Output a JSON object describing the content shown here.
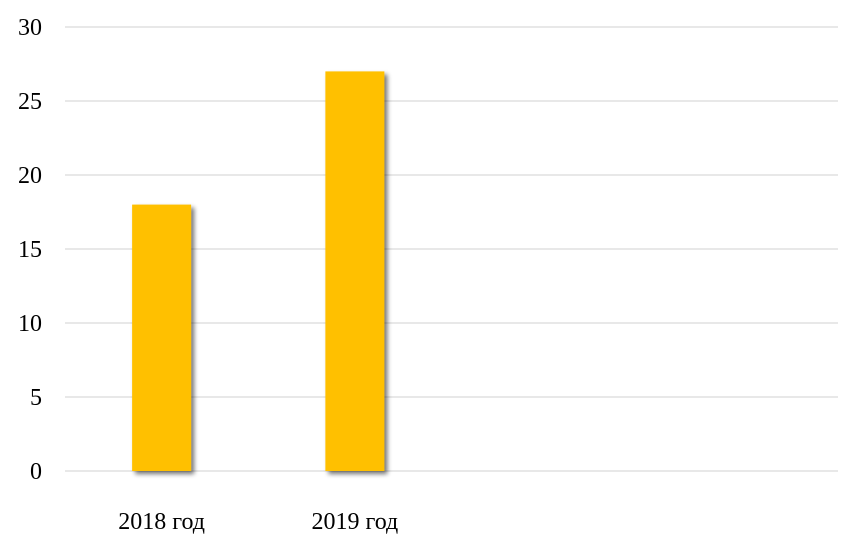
{
  "chart_data": {
    "type": "bar",
    "categories": [
      "2018 год",
      "2019 год",
      "",
      ""
    ],
    "values": [
      18,
      27,
      null,
      null
    ],
    "title": "",
    "xlabel": "",
    "ylabel": "",
    "ylim": [
      0,
      30
    ],
    "yticks": [
      0,
      5,
      10,
      15,
      20,
      25,
      30
    ],
    "grid": true,
    "legend": "none",
    "bar_color": "#ffc000"
  }
}
